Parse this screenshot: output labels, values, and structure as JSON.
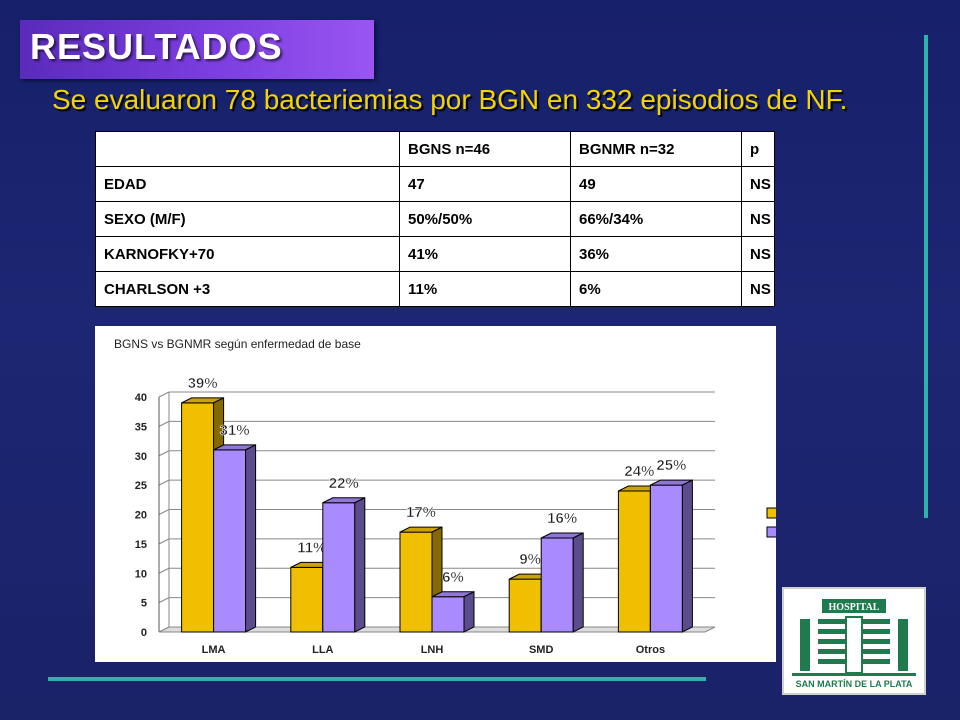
{
  "slide": {
    "title": "RESULTADOS",
    "subtitle": "Se evaluaron 78 bacteriemias por BGN en 332 episodios de NF."
  },
  "table": {
    "header": [
      "",
      "BGNS  n=46",
      "BGNMR n=32",
      "p"
    ],
    "rows": [
      [
        "EDAD",
        "47",
        "49",
        "NS"
      ],
      [
        "SEXO (M/F)",
        "50%/50%",
        "66%/34%",
        "NS"
      ],
      [
        "KARNOFKY+70",
        "41%",
        "36%",
        "NS"
      ],
      [
        "CHARLSON +3",
        "11%",
        "6%",
        "NS"
      ]
    ]
  },
  "chart_data": {
    "type": "bar",
    "title": "BGNS vs BGNMR según enfermedad de base",
    "categories": [
      "LMA",
      "LLA",
      "LNH",
      "SMD",
      "Otros"
    ],
    "series": [
      {
        "name": "BGNS",
        "values": [
          39,
          11,
          17,
          9,
          24
        ],
        "labels": [
          "39%",
          "11%",
          "17%",
          "9%",
          "24%"
        ],
        "color": "#f0c000"
      },
      {
        "name": "BGNMR",
        "values": [
          31,
          22,
          6,
          16,
          25
        ],
        "labels": [
          "31%",
          "22%",
          "6%",
          "16%",
          "25%"
        ],
        "color": "#a98bff"
      }
    ],
    "ylim": [
      0,
      40
    ],
    "yticks": [
      0,
      5,
      10,
      15,
      20,
      25,
      30,
      35,
      40
    ],
    "grid": true,
    "legend": "right",
    "style": "3d"
  },
  "logo": {
    "word": "HOSPITAL",
    "caption": "SAN MARTÍN DE LA PLATA",
    "color": "#1f7a4d"
  },
  "colors": {
    "background": "#1a2268",
    "title_box": "#7c3ee0",
    "subtitle": "#f2d400",
    "accent_lines": "#2fb3a8"
  }
}
